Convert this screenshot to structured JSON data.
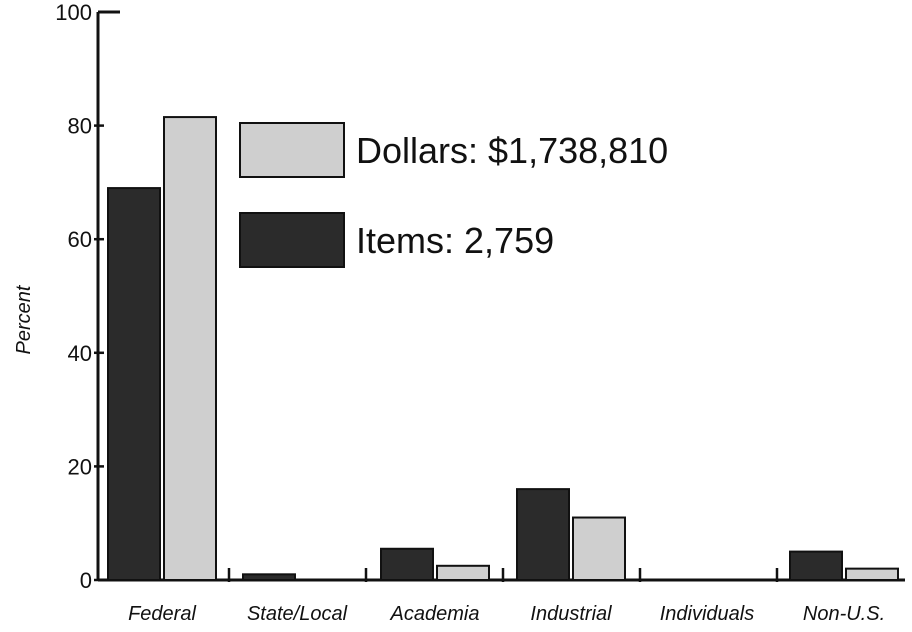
{
  "chart_data": {
    "type": "bar",
    "title": "",
    "xlabel": "",
    "ylabel": "Percent",
    "ylim": [
      0,
      100
    ],
    "yticks": [
      0,
      20,
      40,
      60,
      80,
      100
    ],
    "categories": [
      "Federal",
      "State/Local",
      "Academia",
      "Industrial",
      "Individuals",
      "Non-U.S."
    ],
    "series": [
      {
        "name": "Items",
        "values": [
          69,
          1,
          5.5,
          16,
          0,
          5
        ],
        "color": "#2b2b2b"
      },
      {
        "name": "Dollars",
        "values": [
          81.5,
          0,
          2.5,
          11,
          0,
          2
        ],
        "color": "#cfcfcf"
      }
    ],
    "legend": {
      "position": "top-center",
      "entries": [
        {
          "series": "Dollars",
          "label": "Dollars: $1,738,810"
        },
        {
          "series": "Items",
          "label": "Items: 2,759"
        }
      ]
    },
    "grid": false
  }
}
